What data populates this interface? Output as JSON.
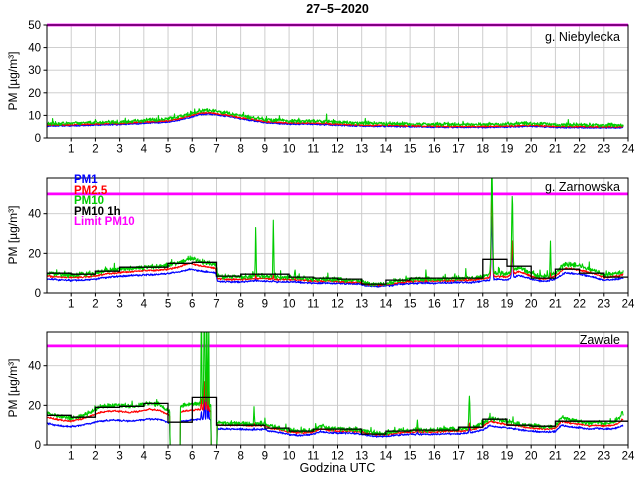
{
  "title": "27–5–2020",
  "xlabel": "Godzina UTC",
  "ylabel": "PM [µg/m³]",
  "limit_value": 50,
  "legend": [
    {
      "label": "PM1",
      "color": "#0000ff"
    },
    {
      "label": "PM2.5",
      "color": "#ff0000"
    },
    {
      "label": "PM10",
      "color": "#00cc00"
    },
    {
      "label": "PM10 1h",
      "color": "#000000"
    },
    {
      "label": "Limit PM10",
      "color": "#ff00ff"
    }
  ],
  "chart_data": [
    {
      "type": "line",
      "name": "g. Niebylecka",
      "xlabel": "Godzina UTC",
      "ylabel": "PM [µg/m³]",
      "xlim": [
        0,
        24
      ],
      "ylim": [
        0,
        50
      ],
      "xticks": [
        1,
        2,
        3,
        4,
        5,
        6,
        7,
        8,
        9,
        10,
        11,
        12,
        13,
        14,
        15,
        16,
        17,
        18,
        19,
        20,
        21,
        22,
        23,
        24
      ],
      "yticks": [
        0,
        10,
        20,
        30,
        40,
        50
      ],
      "grid": true,
      "limit": 50,
      "t_end": 23.8,
      "anchors": {
        "t": [
          0,
          1,
          2,
          3,
          4,
          5,
          5.5,
          6,
          6.3,
          6.7,
          7,
          7.5,
          8,
          9,
          10,
          11,
          12,
          13,
          14,
          15,
          16,
          17,
          18,
          19,
          20,
          21,
          22,
          23,
          23.8
        ],
        "pm10": [
          6.5,
          6.5,
          7,
          7,
          7.8,
          8.5,
          9.5,
          11,
          12,
          12.3,
          11.8,
          10.8,
          9.8,
          8.2,
          7.5,
          7.5,
          7,
          6.5,
          6.5,
          6.2,
          6,
          6,
          6,
          6.2,
          6.5,
          6,
          5.8,
          5.6,
          5.8
        ],
        "pm25": [
          5.8,
          5.8,
          6.2,
          6.4,
          7,
          7.6,
          8.6,
          10,
          11,
          11.2,
          10.8,
          10,
          9,
          7.3,
          6.6,
          6.6,
          6.1,
          5.6,
          5.6,
          5.4,
          5.2,
          5.1,
          5.1,
          5.3,
          5.6,
          5.1,
          5,
          4.9,
          5
        ],
        "pm1": [
          5.3,
          5.4,
          5.7,
          6,
          6.5,
          7.1,
          8,
          9.4,
          10.4,
          10.6,
          10.2,
          9.5,
          8.5,
          6.8,
          6.1,
          6.1,
          5.7,
          5.2,
          5.2,
          5,
          4.8,
          4.7,
          4.7,
          4.9,
          5.2,
          4.7,
          4.6,
          4.5,
          4.6
        ]
      },
      "noise": {
        "pm10": 0.9,
        "pm25": 0.35,
        "pm1": 0.35
      },
      "spikes": [
        {
          "t": 11.55,
          "w": 0.012,
          "pm10": 3.2,
          "pm25": 0.5,
          "pm1": 0.3
        }
      ],
      "dropouts": [],
      "step_hourly": null
    },
    {
      "type": "line",
      "name": "g. Zarnowska",
      "xlabel": "Godzina UTC",
      "ylabel": "PM [µg/m³]",
      "xlim": [
        0,
        24
      ],
      "ylim": [
        0,
        58
      ],
      "xticks": [
        1,
        2,
        3,
        4,
        5,
        6,
        7,
        8,
        9,
        10,
        11,
        12,
        13,
        14,
        15,
        16,
        17,
        18,
        19,
        20,
        21,
        22,
        23,
        24
      ],
      "yticks": [
        0,
        20,
        40
      ],
      "grid": true,
      "limit": 50,
      "t_end": 23.8,
      "anchors": {
        "t": [
          0,
          0.5,
          1,
          1.5,
          2,
          2.5,
          3,
          3.5,
          4,
          4.5,
          5,
          5.5,
          5.9,
          6.3,
          6.7,
          6.95,
          7.05,
          7.5,
          8,
          8.5,
          9,
          9.5,
          10,
          10.5,
          11,
          11.5,
          12,
          12.5,
          12.9,
          13.2,
          13.7,
          14.2,
          14.5,
          15,
          15.5,
          16,
          16.5,
          17,
          17.5,
          18,
          18.6,
          19,
          19.5,
          20,
          20.4,
          20.7,
          21,
          21.4,
          21.8,
          22.2,
          22.6,
          23,
          23.3,
          23.6,
          23.8
        ],
        "pm10": [
          10,
          9.5,
          9,
          9.3,
          10,
          11.5,
          12,
          12.5,
          13,
          13.3,
          14,
          15.5,
          17.5,
          16,
          15,
          14.5,
          8.5,
          8,
          8,
          8.5,
          8.5,
          8,
          8,
          7.5,
          7,
          7,
          6.8,
          6.5,
          6.5,
          4.8,
          4.5,
          5,
          6,
          6.8,
          7,
          7,
          7.2,
          7.5,
          7.5,
          8.5,
          10,
          9.5,
          13,
          10,
          8.5,
          8.5,
          10,
          14.5,
          14,
          13,
          11.5,
          9,
          9.5,
          10,
          11
        ],
        "pm25": [
          8.5,
          8,
          7.8,
          8,
          8.6,
          9.8,
          10.3,
          10.8,
          11.2,
          11.5,
          12,
          13.3,
          15,
          13.8,
          13,
          12.5,
          7.2,
          6.8,
          6.8,
          7.2,
          7.2,
          6.8,
          6.8,
          6.4,
          6,
          6,
          5.8,
          5.5,
          5.5,
          4.2,
          4,
          4.4,
          5.2,
          5.8,
          6,
          6,
          6.2,
          6.4,
          6.4,
          7.2,
          8.5,
          8,
          11,
          8.5,
          7.2,
          7.2,
          8.5,
          12.5,
          12,
          11,
          9.8,
          7.8,
          8.2,
          8.6,
          9.5
        ],
        "pm1": [
          7,
          6.6,
          6.3,
          6.5,
          7,
          8,
          8.4,
          8.8,
          9.1,
          9.3,
          9.8,
          10.8,
          12,
          11.2,
          10.5,
          10.2,
          6,
          5.6,
          5.6,
          6,
          6,
          5.6,
          5.6,
          5.3,
          5,
          5,
          4.8,
          4.6,
          4.6,
          3.6,
          3.4,
          3.7,
          4.3,
          4.8,
          5,
          5,
          5.1,
          5.3,
          5.3,
          6,
          7,
          6.6,
          9,
          7,
          6,
          6,
          7,
          10.2,
          9.8,
          9,
          8,
          6.4,
          6.7,
          7,
          7.8
        ]
      },
      "noise": {
        "pm10": 1.3,
        "pm25": 0.5,
        "pm1": 0.5
      },
      "spikes": [
        {
          "t": 8.62,
          "w": 0.02,
          "pm10": 25,
          "pm25": 1.5,
          "pm1": 1
        },
        {
          "t": 9.35,
          "w": 0.02,
          "pm10": 29,
          "pm25": 2,
          "pm1": 1
        },
        {
          "t": 10.25,
          "w": 0.015,
          "pm10": 5,
          "pm25": 1,
          "pm1": 0.5
        },
        {
          "t": 15.65,
          "w": 0.015,
          "pm10": 4.5,
          "pm25": 1.5,
          "pm1": 0.5
        },
        {
          "t": 16.45,
          "w": 0.015,
          "pm10": 3,
          "pm25": 1,
          "pm1": 0.5
        },
        {
          "t": 17.3,
          "w": 0.015,
          "pm10": 4,
          "pm25": 1,
          "pm1": 0.5
        },
        {
          "t": 18.38,
          "w": 0.04,
          "pm10": 55,
          "pm25": 46,
          "pm1": 32
        },
        {
          "t": 19.22,
          "w": 0.035,
          "pm10": 38,
          "pm25": 17,
          "pm1": 13
        },
        {
          "t": 20.8,
          "w": 0.02,
          "pm10": 17,
          "pm25": 2.5,
          "pm1": 1.5
        }
      ],
      "dropouts": [],
      "step_hourly": [
        10,
        9.5,
        11,
        13,
        13,
        15,
        15.5,
        8.5,
        9.5,
        9.5,
        8,
        7.5,
        7,
        4.5,
        6.5,
        7.5,
        7.5,
        7.5,
        17,
        13.5,
        7.5,
        12,
        10,
        8
      ]
    },
    {
      "type": "line",
      "name": "Zawale",
      "xlabel": "Godzina UTC",
      "ylabel": "PM [µg/m³]",
      "xlim": [
        0,
        24
      ],
      "ylim": [
        0,
        57
      ],
      "xticks": [
        1,
        2,
        3,
        4,
        5,
        6,
        7,
        8,
        9,
        10,
        11,
        12,
        13,
        14,
        15,
        16,
        17,
        18,
        19,
        20,
        21,
        22,
        23,
        24
      ],
      "yticks": [
        0,
        20,
        40
      ],
      "grid": true,
      "limit": 50,
      "t_end": 23.8,
      "anchors": {
        "t": [
          0,
          0.3,
          0.7,
          1,
          1.4,
          1.8,
          2.2,
          2.6,
          3,
          3.4,
          3.8,
          4.2,
          4.6,
          5,
          5.1,
          5.6,
          6,
          6.3,
          6.75,
          7.05,
          7.5,
          8,
          8.5,
          9,
          9.2,
          9.5,
          10,
          10.5,
          11,
          11.3,
          11.6,
          12,
          12.5,
          13,
          13.5,
          14,
          14.5,
          15,
          15.5,
          16,
          16.5,
          17,
          17.5,
          18,
          18.3,
          18.7,
          19,
          19.4,
          19.8,
          20.2,
          20.6,
          21,
          21.25,
          21.6,
          22,
          22.4,
          22.7,
          23,
          23.4,
          23.8
        ],
        "pm10": [
          16,
          15,
          14,
          13.5,
          14.5,
          16.5,
          19.5,
          20,
          20,
          19.5,
          20,
          21,
          20.5,
          17.5,
          16,
          20,
          20.5,
          21,
          20,
          11.5,
          11,
          11,
          10.5,
          11,
          9.5,
          9,
          7.5,
          7,
          7.5,
          9.5,
          8.5,
          8,
          8,
          7.5,
          6,
          6,
          7,
          7.5,
          7.5,
          7.5,
          8,
          8,
          8.5,
          10.5,
          13.5,
          12.5,
          12,
          11,
          10,
          9.5,
          9,
          9.5,
          14,
          12.5,
          12,
          11,
          11.5,
          11,
          11.5,
          15
        ],
        "pm25": [
          14,
          13.2,
          12.3,
          12,
          13,
          14.5,
          16.5,
          17,
          17,
          16.5,
          17,
          18,
          17.5,
          15.5,
          14,
          17,
          17.5,
          18,
          17,
          10.2,
          10,
          10,
          9.5,
          10,
          8.5,
          8,
          6.5,
          6,
          6.5,
          8.2,
          7.5,
          7,
          7,
          6.5,
          5.2,
          5.2,
          6,
          6.5,
          6.5,
          6.5,
          7,
          7,
          7.4,
          9.3,
          12,
          11,
          10.5,
          9.8,
          8.8,
          8.4,
          8,
          8.4,
          12,
          11,
          10.5,
          9.6,
          10,
          9.6,
          10,
          12.3
        ],
        "pm1": [
          11,
          10,
          9.5,
          9.3,
          10,
          11,
          12,
          12.5,
          12.5,
          12,
          12.5,
          13,
          13,
          11.5,
          10.5,
          12,
          12.5,
          13,
          12.5,
          8.2,
          8,
          8,
          7.6,
          8,
          7,
          6.5,
          5.3,
          4.8,
          5.4,
          6.8,
          6.2,
          6,
          6,
          5.4,
          4.3,
          4.4,
          5,
          5.4,
          5.4,
          5.4,
          5.6,
          5.6,
          6,
          7.6,
          9.8,
          9,
          8.6,
          8,
          7.2,
          6.8,
          6.6,
          6.8,
          10,
          9,
          8.8,
          8,
          8.4,
          8,
          8.2,
          9.5
        ]
      },
      "noise": {
        "pm10": 1.2,
        "pm25": 0.5,
        "pm1": 0.5
      },
      "spikes": [
        {
          "t": 6.38,
          "w": 0.02,
          "pm10": 52,
          "pm25": 6,
          "pm1": 4
        },
        {
          "t": 6.5,
          "w": 0.025,
          "pm10": 58,
          "pm25": 14,
          "pm1": 10
        },
        {
          "t": 6.6,
          "w": 0.02,
          "pm10": 55,
          "pm25": 24,
          "pm1": 26
        },
        {
          "t": 6.68,
          "w": 0.015,
          "pm10": 45,
          "pm25": 10,
          "pm1": 8
        },
        {
          "t": 8.55,
          "w": 0.02,
          "pm10": 9,
          "pm25": 1.5,
          "pm1": 1
        },
        {
          "t": 15.3,
          "w": 0.02,
          "pm10": 6,
          "pm25": 2.5,
          "pm1": 1
        },
        {
          "t": 17.45,
          "w": 0.03,
          "pm10": 16,
          "pm25": 4,
          "pm1": 3
        },
        {
          "t": 23.75,
          "w": 0.03,
          "pm10": 3,
          "pm25": 1,
          "pm1": 0.5
        }
      ],
      "dropouts": [
        [
          5.08,
          5.5
        ],
        [
          6.78,
          7.02
        ]
      ],
      "step_hourly": [
        15,
        14,
        19,
        19.5,
        21,
        11.5,
        24,
        10,
        10,
        8.5,
        7,
        8,
        8,
        5.5,
        7,
        7.5,
        7.5,
        9,
        13,
        10,
        9.5,
        12,
        12,
        12
      ]
    }
  ]
}
